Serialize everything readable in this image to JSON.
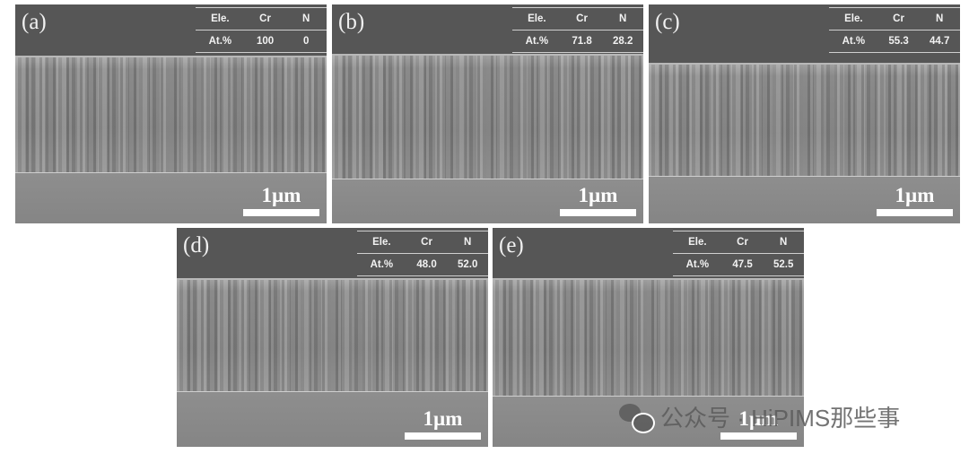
{
  "panels": [
    {
      "label": "(a)",
      "header": [
        "Ele.",
        "Cr",
        "N"
      ],
      "values": [
        "At.%",
        "100",
        "0"
      ],
      "scale": "1µm"
    },
    {
      "label": "(b)",
      "header": [
        "Ele.",
        "Cr",
        "N"
      ],
      "values": [
        "At.%",
        "71.8",
        "28.2"
      ],
      "scale": "1µm"
    },
    {
      "label": "(c)",
      "header": [
        "Ele.",
        "Cr",
        "N"
      ],
      "values": [
        "At.%",
        "55.3",
        "44.7"
      ],
      "scale": "1µm"
    },
    {
      "label": "(d)",
      "header": [
        "Ele.",
        "Cr",
        "N"
      ],
      "values": [
        "At.%",
        "48.0",
        "52.0"
      ],
      "scale": "1µm"
    },
    {
      "label": "(e)",
      "header": [
        "Ele.",
        "Cr",
        "N"
      ],
      "values": [
        "At.%",
        "47.5",
        "52.5"
      ],
      "scale": "1µm"
    }
  ],
  "watermark": {
    "text": "公众号 · HiPIMS那些事",
    "icon": "wechat-icon"
  }
}
